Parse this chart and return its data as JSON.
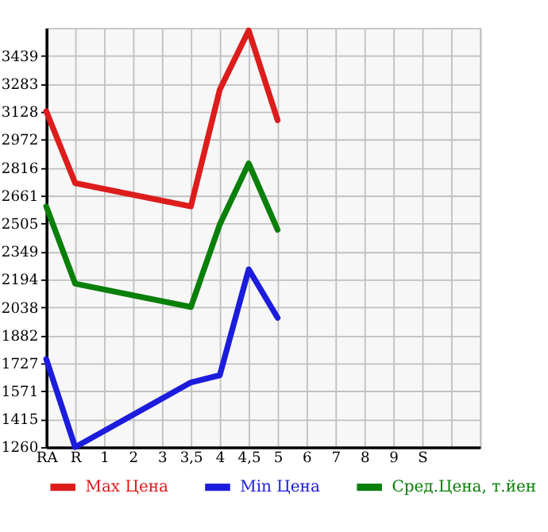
{
  "chart_data": {
    "type": "line",
    "categories": [
      "RA",
      "R",
      "1",
      "2",
      "3",
      "3,5",
      "4",
      "4,5",
      "5",
      "6",
      "7",
      "8",
      "9",
      "S",
      null,
      null
    ],
    "series": [
      {
        "name": "Max Цена",
        "color": "#dd1c1c",
        "values": [
          3130,
          2730,
          null,
          null,
          null,
          2600,
          3250,
          3580,
          3080,
          null,
          null,
          null,
          null,
          null,
          null,
          null
        ]
      },
      {
        "name": "Min Цена",
        "color": "#1c1cdd",
        "values": [
          1750,
          1260,
          null,
          null,
          null,
          1620,
          1660,
          2250,
          1980,
          null,
          null,
          null,
          null,
          null,
          null,
          null
        ]
      },
      {
        "name": "Сред.Цена, т.йен",
        "color": "#0a7f0a",
        "values": [
          2600,
          2170,
          null,
          null,
          null,
          2040,
          2500,
          2840,
          2470,
          null,
          null,
          null,
          null,
          null,
          null,
          null
        ]
      }
    ],
    "ylim": [
      1260,
      3594
    ],
    "yticks": [
      1260,
      1415,
      1571,
      1727,
      1882,
      2038,
      2194,
      2349,
      2505,
      2661,
      2816,
      2972,
      3128,
      3283,
      3439
    ],
    "grid": true,
    "legend": "bottom",
    "marker": "none",
    "line_style": "solid"
  }
}
